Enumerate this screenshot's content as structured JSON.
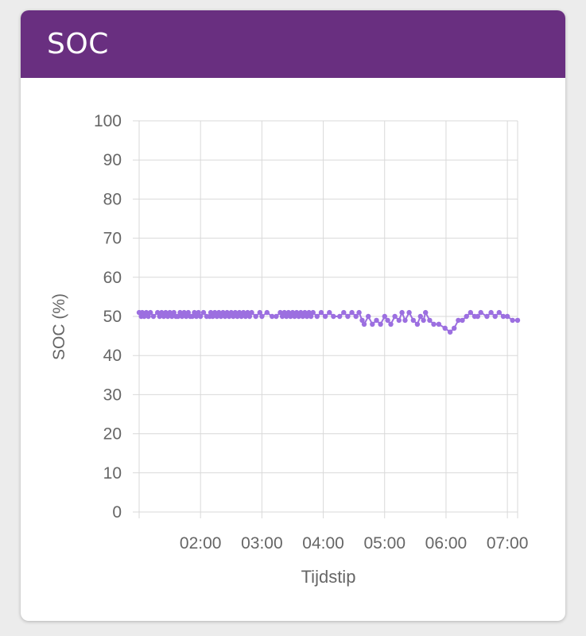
{
  "card": {
    "title": "SOC"
  },
  "colors": {
    "header": "#692f80",
    "series": "#9c6fe0",
    "grid": "#d9d9d9",
    "axis_text": "#666666"
  },
  "chart_data": {
    "type": "line",
    "xlabel": "Tijdstip",
    "ylabel": "SOC (%)",
    "ylim": [
      0,
      100
    ],
    "xlim": [
      "01:00",
      "07:10"
    ],
    "yticks": [
      0,
      10,
      20,
      30,
      40,
      50,
      60,
      70,
      80,
      90,
      100
    ],
    "xticks": [
      "02:00",
      "03:00",
      "04:00",
      "05:00",
      "06:00",
      "07:00"
    ],
    "grid": true,
    "series": [
      {
        "name": "",
        "x": [
          "01:00",
          "01:02",
          "01:03",
          "01:05",
          "01:07",
          "01:09",
          "01:11",
          "01:14",
          "01:18",
          "01:20",
          "01:22",
          "01:24",
          "01:26",
          "01:28",
          "01:30",
          "01:32",
          "01:34",
          "01:36",
          "01:38",
          "01:40",
          "01:42",
          "01:44",
          "01:46",
          "01:48",
          "01:50",
          "01:52",
          "01:54",
          "01:56",
          "01:58",
          "02:00",
          "02:03",
          "02:06",
          "02:09",
          "02:10",
          "02:12",
          "02:14",
          "02:16",
          "02:18",
          "02:20",
          "02:22",
          "02:24",
          "02:26",
          "02:28",
          "02:30",
          "02:32",
          "02:34",
          "02:36",
          "02:38",
          "02:40",
          "02:42",
          "02:44",
          "02:46",
          "02:48",
          "02:50",
          "02:54",
          "02:58",
          "03:00",
          "03:05",
          "03:10",
          "03:14",
          "03:18",
          "03:20",
          "03:22",
          "03:24",
          "03:26",
          "03:28",
          "03:30",
          "03:32",
          "03:34",
          "03:36",
          "03:38",
          "03:40",
          "03:42",
          "03:44",
          "03:46",
          "03:48",
          "03:50",
          "03:54",
          "03:58",
          "04:02",
          "04:06",
          "04:10",
          "04:16",
          "04:20",
          "04:24",
          "04:28",
          "04:32",
          "04:35",
          "04:38",
          "04:40",
          "04:44",
          "04:48",
          "04:52",
          "04:56",
          "05:00",
          "05:03",
          "05:06",
          "05:10",
          "05:14",
          "05:17",
          "05:20",
          "05:24",
          "05:28",
          "05:32",
          "05:35",
          "05:38",
          "05:40",
          "05:44",
          "05:48",
          "05:53",
          "05:59",
          "06:04",
          "06:08",
          "06:12",
          "06:16",
          "06:20",
          "06:24",
          "06:28",
          "06:31",
          "06:34",
          "06:40",
          "06:44",
          "06:48",
          "06:52",
          "06:56",
          "07:00",
          "07:05",
          "07:10"
        ],
        "values": [
          51,
          50,
          51,
          50,
          51,
          50,
          51,
          50,
          51,
          50,
          51,
          50,
          51,
          50,
          51,
          50,
          51,
          50,
          50,
          51,
          50,
          51,
          50,
          51,
          50,
          50,
          51,
          50,
          51,
          50,
          51,
          50,
          50,
          51,
          50,
          51,
          50,
          51,
          50,
          51,
          50,
          51,
          50,
          51,
          50,
          51,
          50,
          51,
          50,
          51,
          50,
          51,
          50,
          51,
          50,
          51,
          50,
          51,
          50,
          50,
          51,
          50,
          51,
          50,
          51,
          50,
          51,
          50,
          51,
          50,
          51,
          50,
          51,
          50,
          51,
          50,
          51,
          50,
          51,
          50,
          51,
          50,
          50,
          51,
          50,
          51,
          50,
          51,
          49,
          48,
          50,
          48,
          49,
          48,
          50,
          49,
          48,
          50,
          49,
          51,
          49,
          51,
          49,
          48,
          50,
          49,
          51,
          49,
          48,
          48,
          47,
          46,
          47,
          49,
          49,
          50,
          51,
          50,
          50,
          51,
          50,
          51,
          50,
          51,
          50,
          50,
          49,
          49
        ]
      }
    ]
  }
}
